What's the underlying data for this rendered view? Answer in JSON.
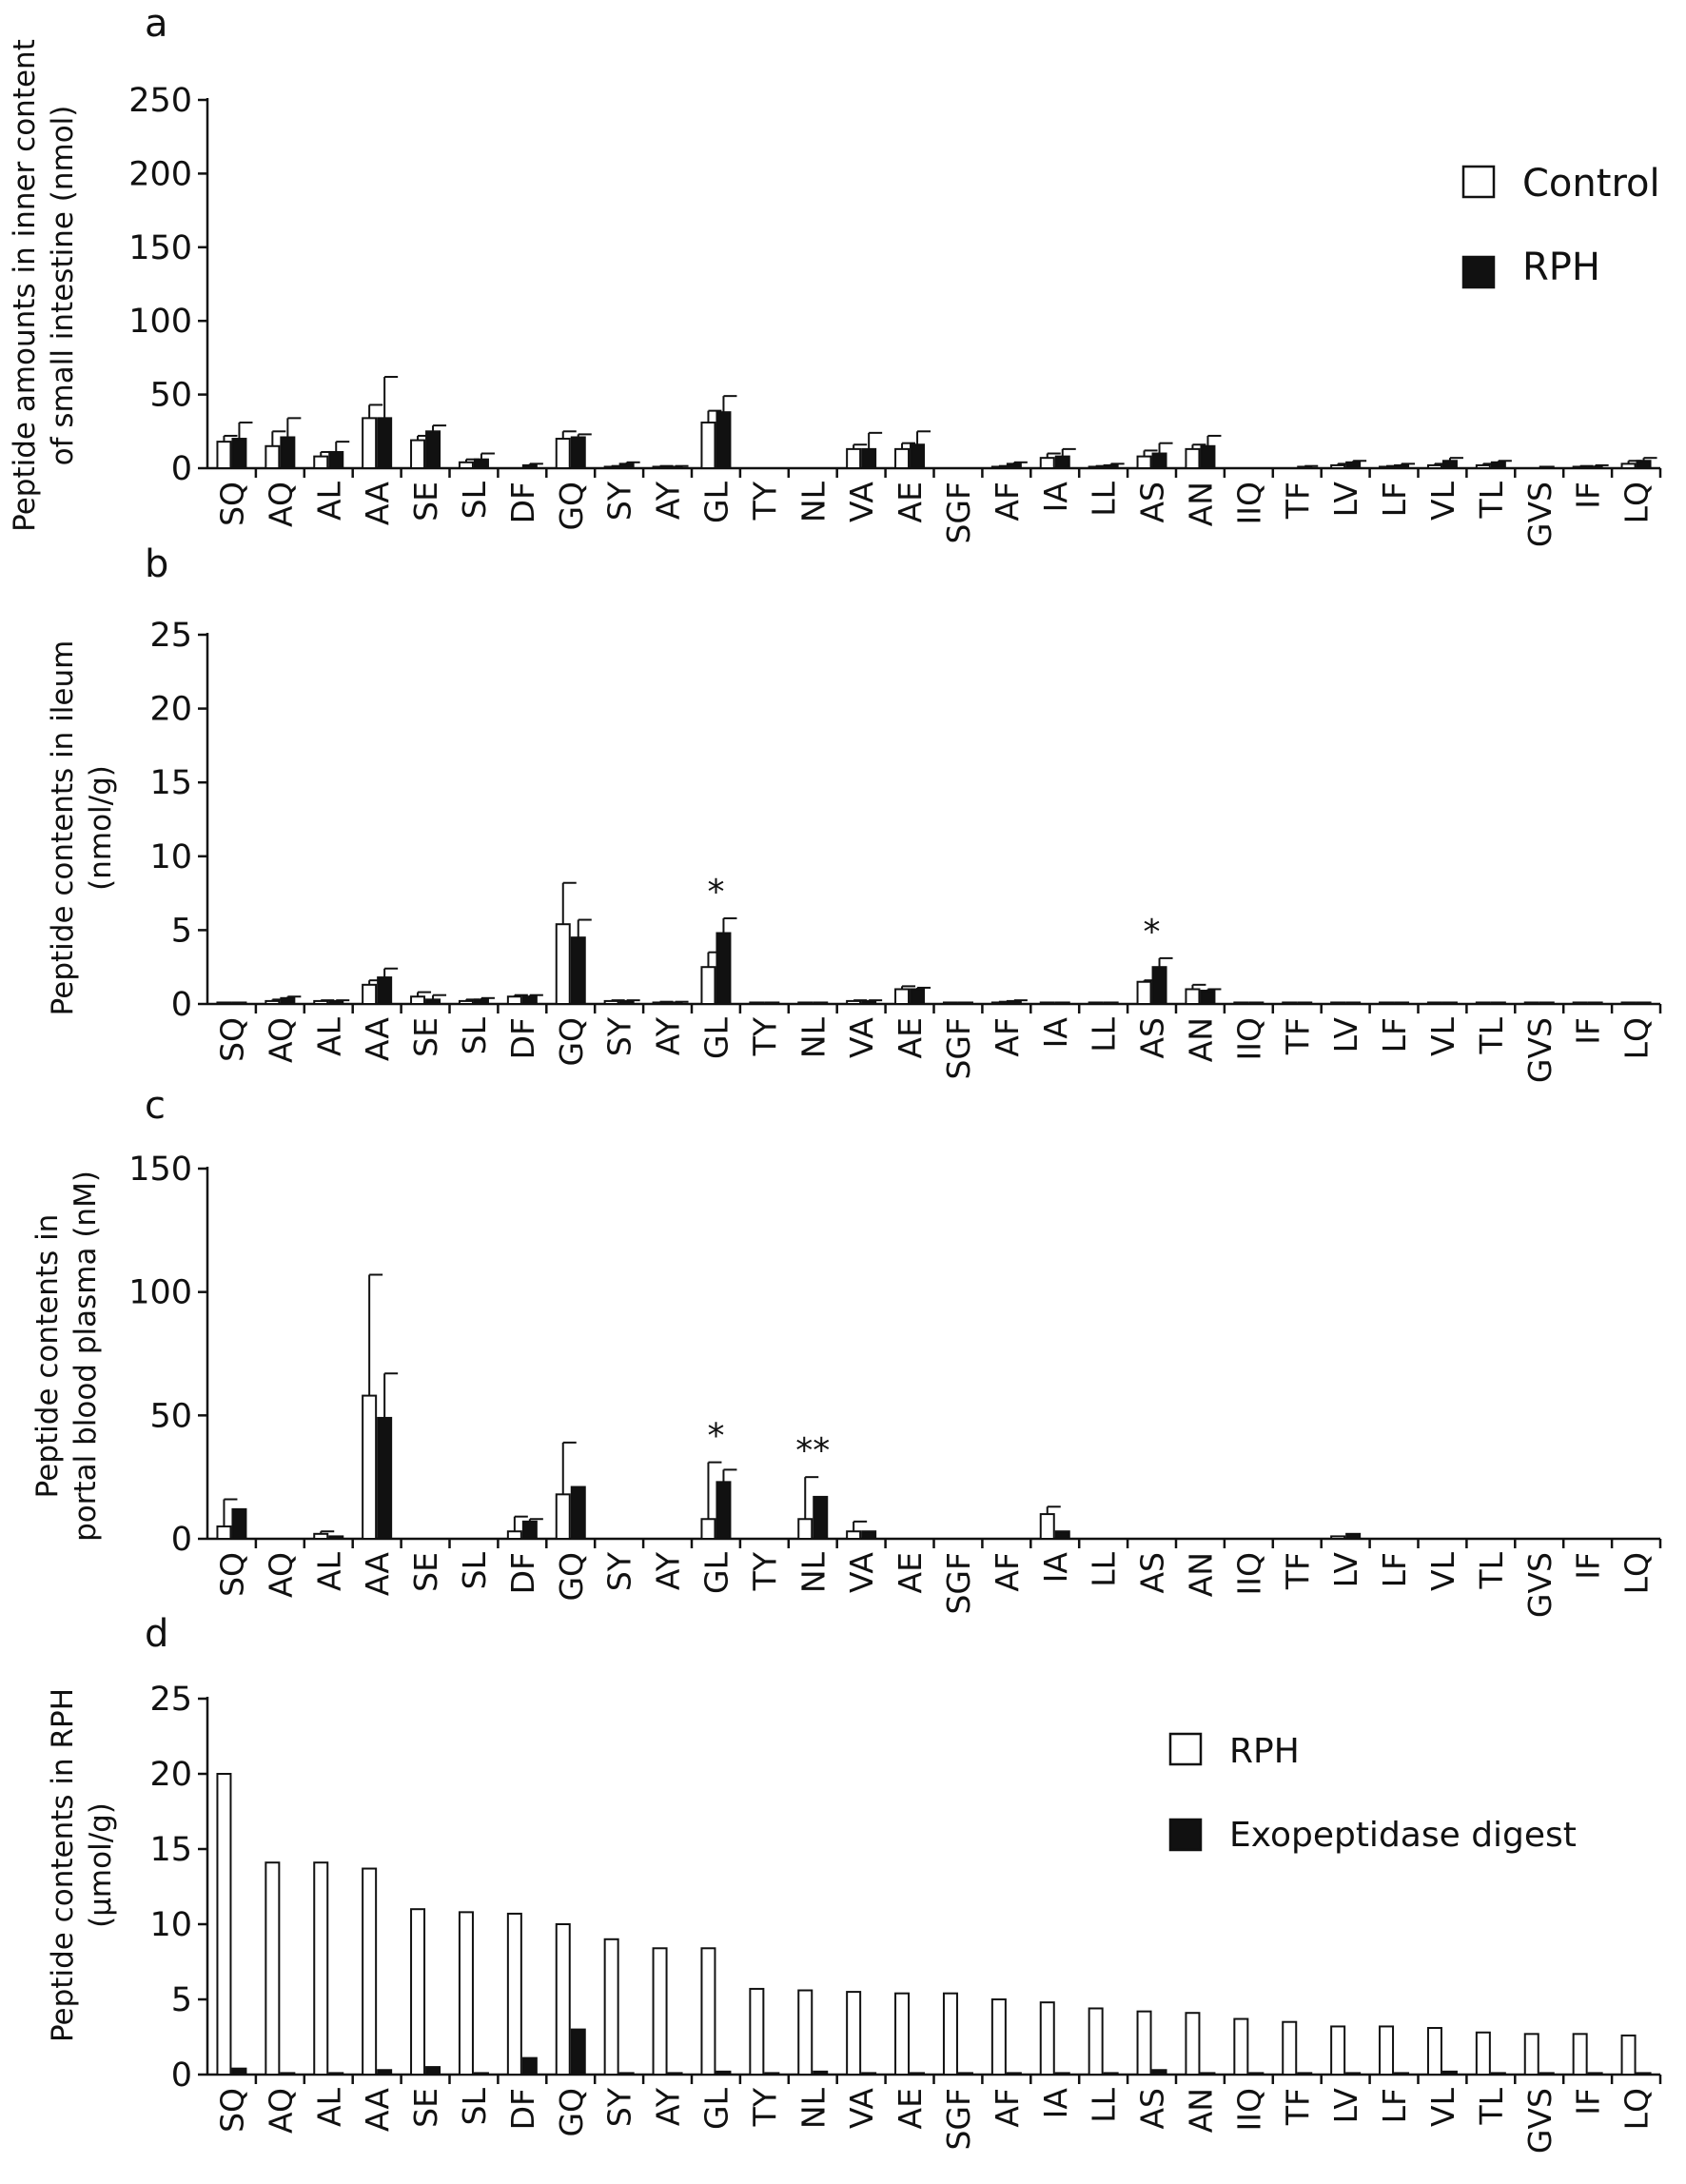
{
  "chart_data": [
    {
      "panel": "a",
      "type": "bar",
      "ylabel": "Peptide amounts in inner content of small intestine (nmol)",
      "ylim": [
        0,
        250
      ],
      "yticks": [
        0,
        50,
        100,
        150,
        200,
        250
      ],
      "legend_position": "top-right",
      "error_bars": true,
      "categories": [
        "SQ",
        "AQ",
        "AL",
        "AA",
        "SE",
        "SL",
        "DF",
        "GQ",
        "SY",
        "AY",
        "GL",
        "TY",
        "NL",
        "VA",
        "AE",
        "SGF",
        "AF",
        "IA",
        "LL",
        "AS",
        "AN",
        "IIQ",
        "TF",
        "LV",
        "LF",
        "VL",
        "TL",
        "GVS",
        "IF",
        "LQ"
      ],
      "series": [
        {
          "name": "Control",
          "color": "#ffffff",
          "values": [
            18,
            15,
            8,
            34,
            19,
            4,
            0,
            20,
            1,
            1,
            31,
            0,
            0,
            13,
            13,
            0,
            1,
            7,
            1,
            8,
            13,
            0,
            0,
            2,
            1,
            2,
            2,
            0,
            1,
            3
          ],
          "errors": [
            4,
            10,
            3,
            9,
            3,
            2,
            0,
            5,
            0.5,
            0.5,
            8,
            0,
            0,
            3,
            4,
            0,
            0.5,
            3,
            0.5,
            4,
            3,
            0,
            0,
            1,
            0.5,
            1,
            1,
            0,
            0.5,
            2
          ]
        },
        {
          "name": "RPH",
          "color": "#111111",
          "values": [
            20,
            21,
            11,
            34,
            25,
            6,
            2,
            21,
            3,
            1,
            38,
            0,
            0,
            13,
            16,
            0,
            3,
            8,
            2,
            10,
            15,
            0,
            1,
            4,
            2,
            5,
            4,
            1,
            1,
            5
          ],
          "errors": [
            11,
            13,
            7,
            28,
            4,
            4,
            1,
            2,
            1,
            0.5,
            11,
            0,
            0,
            11,
            9,
            0,
            1,
            5,
            1,
            7,
            7,
            0,
            0.5,
            1,
            1,
            2,
            1,
            0,
            1,
            2
          ]
        }
      ]
    },
    {
      "panel": "b",
      "type": "bar",
      "ylabel": "Peptide contents in ileum (nmol/g)",
      "ylim": [
        0,
        25
      ],
      "yticks": [
        0,
        5,
        10,
        15,
        20,
        25
      ],
      "error_bars": true,
      "categories": [
        "SQ",
        "AQ",
        "AL",
        "AA",
        "SE",
        "SL",
        "DF",
        "GQ",
        "SY",
        "AY",
        "GL",
        "TY",
        "NL",
        "VA",
        "AE",
        "SGF",
        "AF",
        "IA",
        "LL",
        "AS",
        "AN",
        "IIQ",
        "TF",
        "LV",
        "LF",
        "VL",
        "TL",
        "GVS",
        "IF",
        "LQ"
      ],
      "annotations": [
        {
          "category": "GL",
          "text": "*"
        },
        {
          "category": "AS",
          "text": "*"
        }
      ],
      "series": [
        {
          "name": "Control",
          "color": "#ffffff",
          "values": [
            0.1,
            0.2,
            0.2,
            1.3,
            0.5,
            0.2,
            0.5,
            5.4,
            0.2,
            0.1,
            2.5,
            0.1,
            0.1,
            0.2,
            1.0,
            0.1,
            0.1,
            0.1,
            0.1,
            1.5,
            1.0,
            0.1,
            0.1,
            0.1,
            0.1,
            0.1,
            0.1,
            0.1,
            0.1,
            0.1
          ],
          "errors": [
            0,
            0.1,
            0.05,
            0.3,
            0.3,
            0.1,
            0.1,
            2.8,
            0.05,
            0.05,
            1.0,
            0,
            0,
            0.05,
            0.2,
            0,
            0.05,
            0,
            0,
            0.1,
            0.3,
            0,
            0,
            0,
            0,
            0,
            0,
            0,
            0,
            0
          ]
        },
        {
          "name": "RPH",
          "color": "#111111",
          "values": [
            0.1,
            0.4,
            0.2,
            1.8,
            0.3,
            0.3,
            0.5,
            4.5,
            0.2,
            0.1,
            4.8,
            0.1,
            0.1,
            0.2,
            1.0,
            0.1,
            0.2,
            0.1,
            0.1,
            2.5,
            0.9,
            0.1,
            0.1,
            0.1,
            0.1,
            0.1,
            0.1,
            0.1,
            0.1,
            0.1
          ],
          "errors": [
            0,
            0.1,
            0.05,
            0.6,
            0.3,
            0.1,
            0.1,
            1.2,
            0.05,
            0.05,
            1.0,
            0,
            0,
            0.05,
            0.1,
            0,
            0.05,
            0,
            0,
            0.6,
            0.1,
            0,
            0,
            0,
            0,
            0,
            0,
            0,
            0,
            0
          ]
        }
      ]
    },
    {
      "panel": "c",
      "type": "bar",
      "ylabel": "Peptide contents in portal blood plasma (nM)",
      "ylim": [
        0,
        150
      ],
      "yticks": [
        0,
        50,
        100,
        150
      ],
      "error_bars": true,
      "categories": [
        "SQ",
        "AQ",
        "AL",
        "AA",
        "SE",
        "SL",
        "DF",
        "GQ",
        "SY",
        "AY",
        "GL",
        "TY",
        "NL",
        "VA",
        "AE",
        "SGF",
        "AF",
        "IA",
        "LL",
        "AS",
        "AN",
        "IIQ",
        "TF",
        "LV",
        "LF",
        "VL",
        "TL",
        "GVS",
        "IF",
        "LQ"
      ],
      "annotations": [
        {
          "category": "GL",
          "text": "*"
        },
        {
          "category": "NL",
          "text": "**"
        }
      ],
      "series": [
        {
          "name": "Control",
          "color": "#ffffff",
          "values": [
            5,
            0,
            2,
            58,
            0,
            0,
            3,
            18,
            0,
            0,
            8,
            0,
            8,
            3,
            0,
            0,
            0,
            10,
            0,
            0,
            0,
            0,
            0,
            1,
            0,
            0,
            0,
            0,
            0,
            0
          ],
          "errors": [
            11,
            0,
            1,
            49,
            0,
            0,
            6,
            21,
            0,
            0,
            23,
            0,
            17,
            4,
            0,
            0,
            0,
            3,
            0,
            0,
            0,
            0,
            0,
            0,
            0,
            0,
            0,
            0,
            0,
            0
          ]
        },
        {
          "name": "RPH",
          "color": "#111111",
          "values": [
            12,
            0,
            1,
            49,
            0,
            0,
            7,
            21,
            0,
            0,
            23,
            0,
            17,
            3,
            0,
            0,
            0,
            3,
            0,
            0,
            0,
            0,
            0,
            2,
            0,
            0,
            0,
            0,
            0,
            0
          ],
          "errors": [
            0,
            0,
            0,
            18,
            0,
            0,
            1,
            0,
            0,
            0,
            5,
            0,
            0,
            0,
            0,
            0,
            0,
            0,
            0,
            0,
            0,
            0,
            0,
            0,
            0,
            0,
            0,
            0,
            0,
            0
          ]
        }
      ]
    },
    {
      "panel": "d",
      "type": "bar",
      "ylabel": "Peptide contents in RPH (μmol/g)",
      "ylim": [
        0,
        25
      ],
      "yticks": [
        0,
        5,
        10,
        15,
        20,
        25
      ],
      "legend_position": "top-right",
      "error_bars": false,
      "categories": [
        "SQ",
        "AQ",
        "AL",
        "AA",
        "SE",
        "SL",
        "DF",
        "GQ",
        "SY",
        "AY",
        "GL",
        "TY",
        "NL",
        "VA",
        "AE",
        "SGF",
        "AF",
        "IA",
        "LL",
        "AS",
        "AN",
        "IIQ",
        "TF",
        "LV",
        "LF",
        "VL",
        "TL",
        "GVS",
        "IF",
        "LQ"
      ],
      "series": [
        {
          "name": "RPH",
          "color": "#ffffff",
          "values": [
            20,
            14.1,
            14.1,
            13.7,
            11.0,
            10.8,
            10.7,
            10.0,
            9.0,
            8.4,
            8.4,
            5.7,
            5.6,
            5.5,
            5.4,
            5.4,
            5.0,
            4.8,
            4.4,
            4.2,
            4.1,
            3.7,
            3.5,
            3.2,
            3.2,
            3.1,
            2.8,
            2.7,
            2.7,
            2.6
          ],
          "errors": []
        },
        {
          "name": "Exopeptidase digest",
          "color": "#111111",
          "values": [
            0.4,
            0.1,
            0.1,
            0.3,
            0.5,
            0.1,
            1.1,
            3.0,
            0.1,
            0.1,
            0.2,
            0.1,
            0.2,
            0.1,
            0.1,
            0.1,
            0.1,
            0.1,
            0.1,
            0.3,
            0.1,
            0.1,
            0.1,
            0.1,
            0.1,
            0.2,
            0.1,
            0.1,
            0.1,
            0.1
          ],
          "errors": []
        }
      ]
    }
  ],
  "legend_a": [
    {
      "label": "Control",
      "color": "#ffffff"
    },
    {
      "label": "RPH",
      "color": "#111111"
    }
  ],
  "legend_d": [
    {
      "label": "RPH",
      "color": "#ffffff"
    },
    {
      "label": "Exopeptidase digest",
      "color": "#111111"
    }
  ]
}
